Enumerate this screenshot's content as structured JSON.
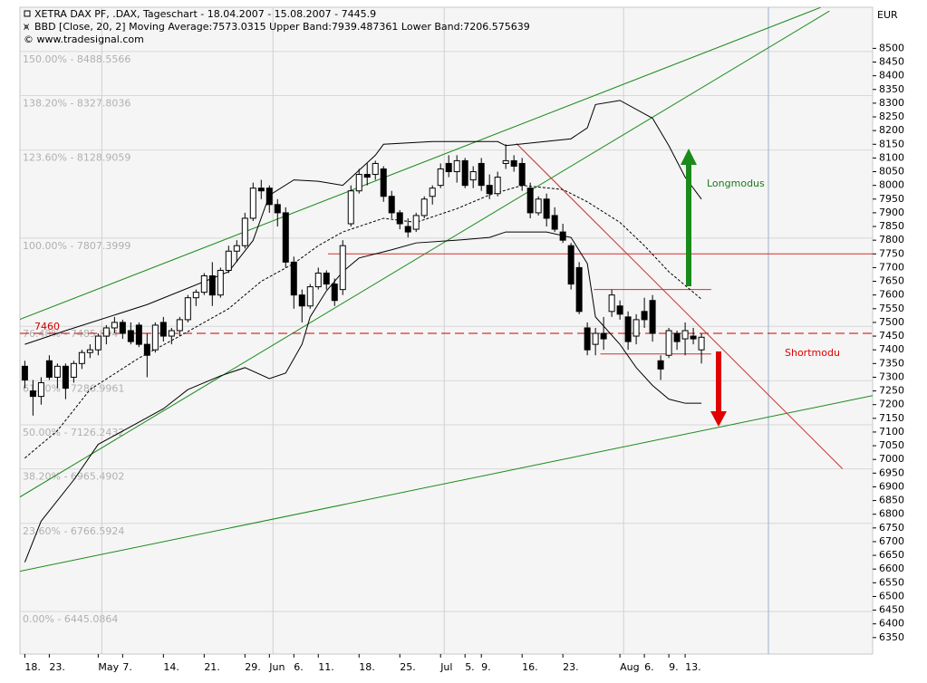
{
  "chart_data": {
    "type": "candlestick",
    "title": "XETRA DAX PF, .DAX, Tageschart - 18.04.2007 - 15.08.2007 - 7445.9",
    "subtitle": "BBD [Close, 20, 2] Moving Average:7573.0315 Upper Band:7939.487361 Lower Band:7206.575639",
    "source": "© www.tradesignal.com",
    "currency": "EUR",
    "categories": [
      "18.",
      null,
      null,
      "23.",
      null,
      null,
      null,
      null,
      null,
      "May",
      null,
      null,
      "7.",
      null,
      null,
      null,
      null,
      "14.",
      null,
      null,
      null,
      null,
      "21.",
      null,
      null,
      null,
      null,
      "29.",
      null,
      null,
      "Jun",
      null,
      null,
      "6.",
      null,
      null,
      "11.",
      null,
      null,
      null,
      null,
      "18.",
      null,
      null,
      null,
      null,
      "25.",
      null,
      null,
      null,
      null,
      "Jul",
      null,
      null,
      "5.",
      null,
      "9.",
      null,
      null,
      null,
      null,
      "16.",
      null,
      null,
      null,
      null,
      "23.",
      null,
      null,
      null,
      null,
      null,
      null,
      "Aug",
      null,
      null,
      "6.",
      null,
      null,
      "9.",
      null,
      "13.",
      null,
      null
    ],
    "open": [
      7340,
      7250,
      7230,
      7360,
      7300,
      7340,
      7300,
      7350,
      7390,
      7400,
      7450,
      7480,
      7500,
      7470,
      7490,
      7420,
      7400,
      7500,
      7450,
      7470,
      7510,
      7590,
      7610,
      7670,
      7600,
      7690,
      7760,
      7780,
      7880,
      7990,
      7990,
      7930,
      7900,
      7720,
      7600,
      7560,
      7630,
      7680,
      7640,
      7620,
      7860,
      7980,
      8040,
      8040,
      8060,
      7960,
      7900,
      7850,
      7840,
      7890,
      7960,
      8000,
      8080,
      8050,
      8090,
      8020,
      8080,
      8000,
      7970,
      8080,
      8090,
      8080,
      7990,
      7900,
      7950,
      7890,
      7830,
      7780,
      7700,
      7480,
      7420,
      7460,
      7540,
      7560,
      7520,
      7450,
      7540,
      7580,
      7360,
      7380,
      7460,
      7440,
      7450,
      7400
    ],
    "high": [
      7360,
      7290,
      7300,
      7380,
      7350,
      7350,
      7360,
      7400,
      7420,
      7460,
      7490,
      7520,
      7510,
      7500,
      7500,
      7460,
      7500,
      7520,
      7480,
      7520,
      7600,
      7620,
      7680,
      7720,
      7700,
      7780,
      7800,
      7900,
      8010,
      8020,
      8000,
      7950,
      7920,
      7740,
      7620,
      7640,
      7700,
      7690,
      7660,
      7800,
      8000,
      8060,
      8080,
      8090,
      8070,
      7980,
      7910,
      7880,
      7900,
      7960,
      8000,
      8080,
      8110,
      8110,
      8100,
      8070,
      8100,
      8040,
      8050,
      8150,
      8110,
      8100,
      8010,
      7960,
      7970,
      7920,
      7860,
      7790,
      7720,
      7500,
      7480,
      7520,
      7620,
      7580,
      7540,
      7530,
      7590,
      7600,
      7380,
      7480,
      7470,
      7500,
      7480,
      7460
    ],
    "low": [
      7260,
      7160,
      7200,
      7290,
      7260,
      7220,
      7280,
      7330,
      7370,
      7380,
      7420,
      7460,
      7440,
      7420,
      7410,
      7300,
      7390,
      7430,
      7420,
      7450,
      7500,
      7560,
      7600,
      7560,
      7590,
      7680,
      7720,
      7770,
      7870,
      7950,
      7900,
      7850,
      7700,
      7550,
      7500,
      7550,
      7620,
      7620,
      7560,
      7600,
      7850,
      7970,
      8000,
      8020,
      7940,
      7880,
      7840,
      7810,
      7830,
      7880,
      7930,
      7990,
      8030,
      8010,
      7990,
      7990,
      7980,
      7950,
      7960,
      8060,
      8050,
      7980,
      7880,
      7890,
      7850,
      7830,
      7790,
      7620,
      7530,
      7380,
      7380,
      7400,
      7520,
      7510,
      7400,
      7420,
      7480,
      7430,
      7290,
      7370,
      7400,
      7380,
      7420,
      7350
    ],
    "close": [
      7290,
      7230,
      7280,
      7300,
      7340,
      7260,
      7350,
      7390,
      7400,
      7450,
      7480,
      7500,
      7460,
      7430,
      7420,
      7380,
      7490,
      7450,
      7470,
      7510,
      7590,
      7610,
      7670,
      7600,
      7690,
      7760,
      7780,
      7880,
      7990,
      7980,
      7930,
      7900,
      7720,
      7600,
      7560,
      7630,
      7680,
      7640,
      7580,
      7780,
      7980,
      8040,
      8030,
      8080,
      7960,
      7900,
      7860,
      7830,
      7890,
      7950,
      7990,
      8060,
      8050,
      8090,
      8000,
      8050,
      8000,
      7970,
      8030,
      8090,
      8070,
      8000,
      7900,
      7950,
      7880,
      7840,
      7800,
      7640,
      7540,
      7400,
      7460,
      7440,
      7600,
      7530,
      7430,
      7510,
      7510,
      7460,
      7330,
      7470,
      7430,
      7470,
      7440,
      7445.9
    ],
    "up_color": "#ffffff",
    "down_color": "#000000",
    "xlim": [
      -0.6,
      104
    ],
    "ylim": [
      6290,
      8650
    ],
    "yticks": [
      6350,
      6400,
      6450,
      6500,
      6550,
      6600,
      6650,
      6700,
      6750,
      6800,
      6850,
      6900,
      6950,
      7000,
      7050,
      7100,
      7150,
      7200,
      7250,
      7300,
      7350,
      7400,
      7450,
      7500,
      7550,
      7600,
      7650,
      7700,
      7750,
      7800,
      7850,
      7900,
      7950,
      8000,
      8050,
      8100,
      8150,
      8200,
      8250,
      8300,
      8350,
      8400,
      8450,
      8500
    ],
    "bands": [
      {
        "color": "#000000",
        "dashed": false,
        "x": [
          0,
          5,
          15,
          25,
          28,
          30,
          33,
          36,
          39,
          43,
          44,
          50,
          58,
          59,
          67,
          69,
          70,
          73,
          77,
          79,
          81,
          83
        ],
        "values": [
          7420,
          7470,
          7565,
          7685,
          7799,
          7964,
          8020,
          8015,
          8000,
          8110,
          8150,
          8160,
          8160,
          8145,
          8170,
          8210,
          8295,
          8310,
          8245,
          8145,
          8030,
          7950
        ]
      },
      {
        "color": "#000000",
        "dashed": true,
        "x": [
          0,
          4,
          8,
          14,
          19,
          25,
          29,
          33,
          36,
          39,
          44,
          48,
          53,
          57,
          61,
          66,
          69,
          73,
          76,
          79,
          83
        ],
        "values": [
          7005,
          7105,
          7255,
          7370,
          7450,
          7550,
          7650,
          7715,
          7780,
          7830,
          7880,
          7865,
          7915,
          7965,
          8000,
          7985,
          7940,
          7865,
          7780,
          7685,
          7585
        ]
      },
      {
        "color": "#000000",
        "dashed": false,
        "x": [
          0,
          2,
          6,
          9,
          13,
          17,
          20,
          24,
          27,
          30,
          32,
          34,
          35,
          37,
          39,
          41,
          45,
          48,
          53,
          57,
          59,
          64,
          67,
          69,
          70,
          73,
          75,
          77,
          79,
          81,
          83
        ],
        "values": [
          6625,
          6775,
          6925,
          7055,
          7120,
          7185,
          7255,
          7305,
          7335,
          7295,
          7315,
          7420,
          7520,
          7615,
          7685,
          7735,
          7765,
          7790,
          7800,
          7810,
          7830,
          7830,
          7810,
          7715,
          7520,
          7420,
          7335,
          7270,
          7220,
          7205,
          7205
        ]
      }
    ],
    "levels": [
      {
        "value": 8488.5566,
        "label": "150.00% - 8488.5566"
      },
      {
        "value": 8327.8036,
        "label": "138.20% - 8327.8036"
      },
      {
        "value": 8128.9059,
        "label": "123.60% - 8128.9059"
      },
      {
        "value": 7807.3999,
        "label": "100.00% - 7807.3999"
      },
      {
        "value": 7485.894,
        "label": "76.40% - 7485.894"
      },
      {
        "value": 7286.9961,
        "label": "61.80% - 7286.9961"
      },
      {
        "value": 7126.2432,
        "label": "50.00% - 7126.2432"
      },
      {
        "value": 6965.4902,
        "label": "38.20% - 6965.4902"
      },
      {
        "value": 6766.5924,
        "label": "23.60% - 6766.5924"
      },
      {
        "value": 6445.0864,
        "label": "0.00% - 6445.0864"
      }
    ],
    "marker_level": {
      "value": 7460,
      "color": "#d00000"
    },
    "trend_lines": [
      {
        "color": "#1a8a1a",
        "x": [
          -0.6,
          97.6
        ],
        "values": [
          7511,
          8649
        ]
      },
      {
        "color": "#1a8a1a",
        "x": [
          -0.6,
          98.7
        ],
        "values": [
          6863,
          8636
        ]
      },
      {
        "color": "#1a8a1a",
        "x": [
          -0.6,
          104
        ],
        "values": [
          6592,
          7233
        ]
      },
      {
        "color": "#d03030",
        "x": [
          60.3,
          100.3
        ],
        "values": [
          8153,
          6966
        ]
      },
      {
        "color": "#d03030",
        "x": [
          37.2,
          104
        ],
        "values": [
          7750,
          7750
        ]
      },
      {
        "color": "#d03030",
        "x": [
          69.8,
          84.2
        ],
        "values": [
          7620,
          7620
        ]
      },
      {
        "color": "#d03030",
        "x": [
          70.6,
          84.2
        ],
        "values": [
          7385,
          7385
        ]
      }
    ],
    "annotations": [
      {
        "text": "Longmodus",
        "color": "#1a7a1a"
      },
      {
        "text": "Shortmodu",
        "color": "#e00000"
      }
    ]
  }
}
